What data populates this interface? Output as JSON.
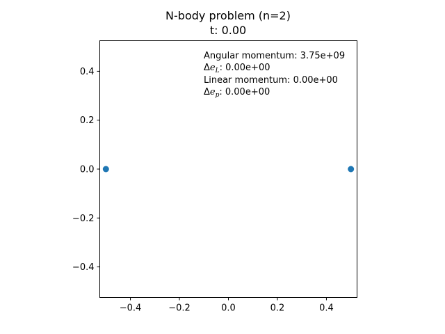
{
  "chart_data": {
    "type": "scatter",
    "title": "N-body problem (n=2)",
    "subtitle": "t: 0.00",
    "xlabel": "",
    "ylabel": "",
    "xlim": [
      -0.525,
      0.525
    ],
    "ylim": [
      -0.525,
      0.525
    ],
    "x_ticks": [
      -0.4,
      -0.2,
      0.0,
      0.2,
      0.4
    ],
    "y_ticks": [
      -0.4,
      -0.2,
      0.0,
      0.2,
      0.4
    ],
    "x_tick_labels": [
      "−0.4",
      "−0.2",
      "0.0",
      "0.2",
      "0.4"
    ],
    "y_tick_labels": [
      "−0.4",
      "−0.2",
      "0.0",
      "0.2",
      "0.4"
    ],
    "grid": false,
    "points": [
      {
        "x": -0.5,
        "y": 0.0
      },
      {
        "x": 0.5,
        "y": 0.0
      }
    ],
    "marker_color": "#1f77b4",
    "annotations": {
      "angular_momentum_label": "Angular momentum: ",
      "angular_momentum_value": "3.75e+09",
      "delta_eL_symbol": "Δ",
      "delta_eL_var": "e",
      "delta_eL_sub": "L",
      "delta_eL_value": ": 0.00e+00",
      "linear_momentum_label": "Linear momentum: ",
      "linear_momentum_value": "0.00e+00",
      "delta_ep_symbol": "Δ",
      "delta_ep_var": "e",
      "delta_ep_sub": "p",
      "delta_ep_value": ": 0.00e+00"
    }
  }
}
